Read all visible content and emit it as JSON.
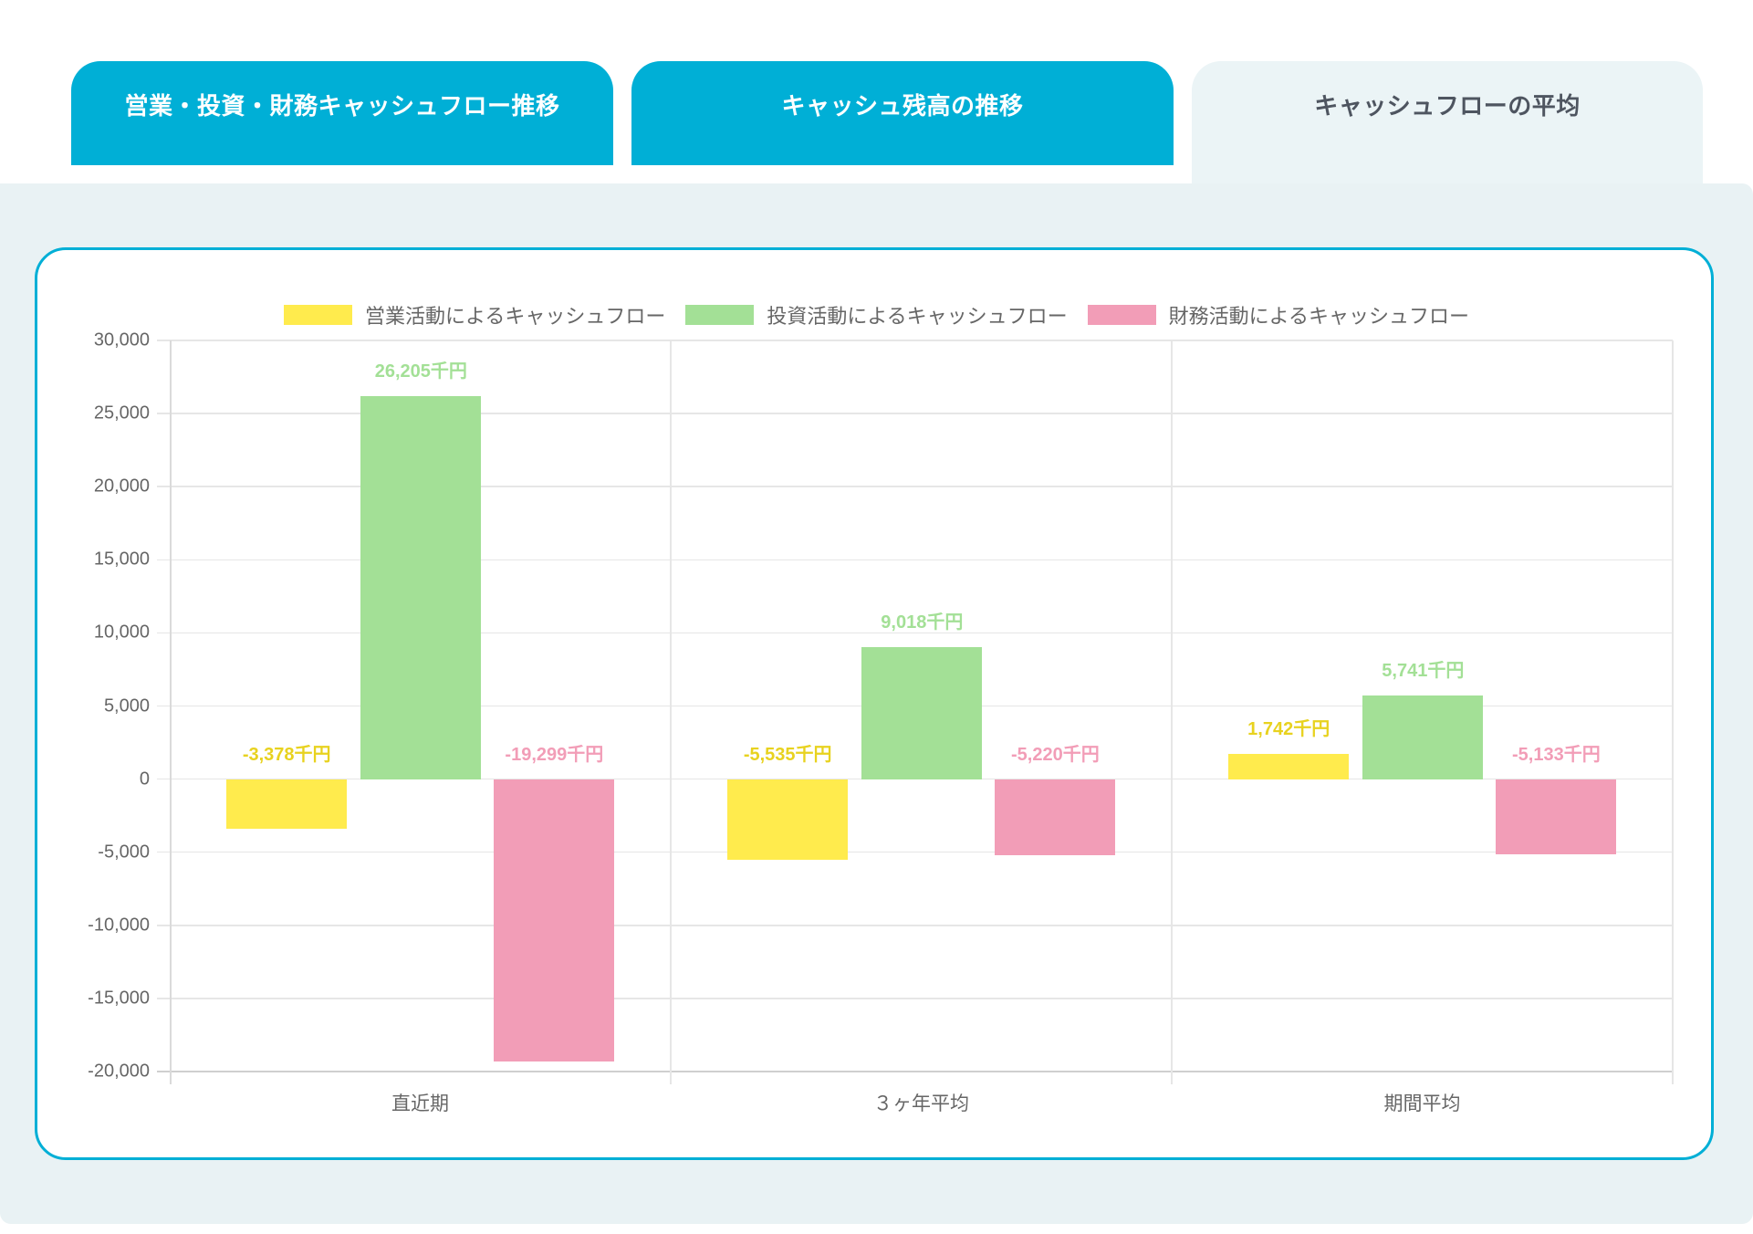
{
  "tabs": [
    {
      "label": "営業・投資・財務キャッシュフロー推移",
      "active": false
    },
    {
      "label": "キャッシュ残高の推移",
      "active": false
    },
    {
      "label": "キャッシュフローの平均",
      "active": true
    }
  ],
  "colors": {
    "accent": "#00AFD6",
    "panel_bg": "#E9F2F4",
    "operating": "#FFEB4D",
    "investing": "#A3E096",
    "financing": "#F29DB7",
    "operating_label": "#E8D21F",
    "investing_label": "#A3E096",
    "financing_label": "#F29DB7"
  },
  "chart_data": {
    "type": "bar",
    "title": "",
    "xlabel": "",
    "ylabel": "",
    "unit_suffix": "千円",
    "categories": [
      "直近期",
      "３ヶ年平均",
      "期間平均"
    ],
    "series": [
      {
        "name": "営業活動によるキャッシュフロー",
        "values": [
          -3378,
          -5535,
          1742
        ],
        "labels": [
          "-3,378千円",
          "-5,535千円",
          "1,742千円"
        ]
      },
      {
        "name": "投資活動によるキャッシュフロー",
        "values": [
          26205,
          9018,
          5741
        ],
        "labels": [
          "26,205千円",
          "9,018千円",
          "5,741千円"
        ]
      },
      {
        "name": "財務活動によるキャッシュフロー",
        "values": [
          -19299,
          -5220,
          -5133
        ],
        "labels": [
          "-19,299千円",
          "-5,220千円",
          "-5,133千円"
        ]
      }
    ],
    "ylim": [
      -20000,
      30000
    ],
    "y_ticks": [
      "30,000",
      "25,000",
      "20,000",
      "15,000",
      "10,000",
      "5,000",
      "0",
      "-5,000",
      "-10,000",
      "-15,000",
      "-20,000"
    ],
    "y_tick_values": [
      30000,
      25000,
      20000,
      15000,
      10000,
      5000,
      0,
      -5000,
      -10000,
      -15000,
      -20000
    ],
    "grid": true,
    "legend_position": "top"
  }
}
